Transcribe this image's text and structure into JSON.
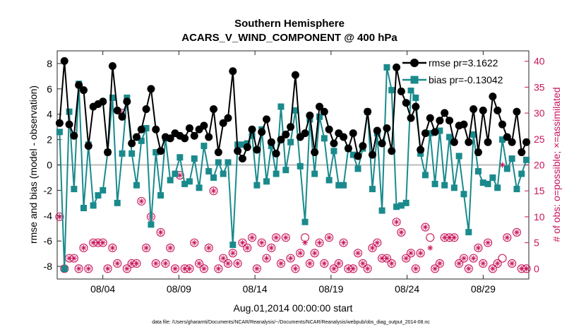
{
  "chart_data": {
    "type": "line",
    "title": "Southern Hemisphere",
    "subtitle": "ACARS_V_WIND_COMPONENT @ 400 hPa",
    "xlabel": "Aug.01,2014 00:00:00 start",
    "ylabel": "rmse and bias (model - observation)",
    "ylabel_right": "# of obs: o=possible; ×=assimilated",
    "footnote": "data file: /Users/gharamti/Documents/NCAR/Reanalysis/~/Documents/NCAR/Reanalysis/webpub/obs_diag_output_2014-08.nc",
    "xlim": [
      1,
      32
    ],
    "ylim": [
      -9,
      9
    ],
    "ylim_right": [
      -2,
      42
    ],
    "x_ticks": [
      4,
      9,
      14,
      19,
      24,
      29
    ],
    "x_tick_labels": [
      "08/04",
      "08/09",
      "08/14",
      "08/19",
      "08/24",
      "08/29"
    ],
    "y_ticks": [
      -8,
      -6,
      -4,
      -2,
      0,
      2,
      4,
      6,
      8
    ],
    "y_ticks_right": [
      0,
      5,
      10,
      15,
      20,
      25,
      30,
      35,
      40
    ],
    "grid": false,
    "legend_position": "top-right",
    "colors": {
      "rmse": "#000000",
      "bias": "#1a8a8c",
      "counts": "#c8155a",
      "zero_line": "#bbbbbb"
    },
    "series": [
      {
        "name": "rmse pr=3.1622",
        "marker": "filled-circle",
        "values": [
          3.3,
          8.2,
          3.2,
          2.3,
          6.3,
          5.9,
          1.5,
          4.6,
          4.8,
          5.0,
          1.0,
          7.8,
          4.3,
          3.8,
          5.0,
          1.7,
          2.2,
          2.8,
          4.4,
          6.0,
          2.8,
          1.1,
          2.2,
          2.1,
          2.5,
          2.3,
          2.1,
          2.9,
          2.3,
          2.8,
          3.1,
          2.2,
          4.4,
          1.0,
          3.3,
          3.7,
          7.4,
          1.1,
          0.5,
          1.4,
          2.8,
          1.2,
          2.6,
          3.6,
          1.8,
          0.9,
          2.0,
          2.4,
          3.0,
          7.1,
          2.2,
          2.5,
          3.9,
          1.0,
          4.6,
          4.2,
          2.8,
          1.7,
          2.5,
          2.2,
          1.3,
          2.5,
          0.7,
          1.5,
          4.2,
          0.8,
          2.7,
          1.7,
          2.9,
          1.1,
          7.7,
          5.8,
          4.9,
          3.7,
          4.6,
          1.2,
          2.5,
          3.7,
          2.6,
          3.5,
          4.1,
          3.5,
          1.8,
          3.1,
          3.2,
          1.8,
          4.4,
          1.0,
          4.3,
          1.8,
          5.4,
          4.3,
          3.2,
          2.2,
          1.8,
          4.2,
          1.0,
          1.8
        ]
      },
      {
        "name": "bias pr=-0.13042",
        "marker": "filled-square",
        "values": [
          2.6,
          -8.2,
          4.2,
          -1.9,
          6.4,
          -3.4,
          1.6,
          -3.2,
          -2.4,
          -2.0,
          1.0,
          5.3,
          -3.0,
          0.9,
          5.3,
          0.9,
          -1.6,
          1.9,
          2.9,
          -4.7,
          1.0,
          -2.4,
          2.1,
          -1.2,
          -0.7,
          0.6,
          -1.5,
          -1.3,
          0.5,
          -1.8,
          1.5,
          -0.5,
          -1.0,
          0.2,
          -0.7,
          0.2,
          -6.3,
          1.6,
          1.6,
          1.7,
          2.3,
          -1.6,
          2.8,
          -1.3,
          1.5,
          -0.7,
          4.6,
          -0.4,
          1.8,
          4.3,
          -0.1,
          -4.5,
          3.6,
          -0.7,
          3.8,
          2.1,
          -1.2,
          1.1,
          -1.6,
          -1.6,
          1.3,
          0.8,
          -0.3,
          1.3,
          4.2,
          -1.9,
          2.5,
          -3.6,
          7.7,
          5.9,
          -3.3,
          -3.2,
          -3.0,
          5.9,
          5.3,
          0.9,
          -0.8,
          2.5,
          -1.5,
          2.7,
          -1.6,
          2.2,
          -1.8,
          0.7,
          -2.3,
          -5.3,
          2.4,
          -0.5,
          -1.4,
          -1.5,
          -1.0,
          -1.8,
          2.0,
          -0.3,
          0.5,
          -1.9,
          -0.7,
          0.4
        ]
      },
      {
        "name": "possible",
        "marker": "open-circle",
        "values": [
          10,
          0,
          2,
          2,
          0,
          4,
          0,
          5,
          5,
          5,
          0,
          4,
          1,
          30,
          0,
          1,
          1,
          13,
          4,
          10,
          1,
          7,
          1,
          4,
          0,
          18,
          0,
          0,
          5,
          1,
          0,
          4,
          15,
          0,
          2,
          1,
          3,
          1,
          5,
          4,
          6,
          0,
          5,
          2,
          4,
          6,
          1,
          6,
          2,
          0,
          3,
          6,
          1,
          3,
          5,
          1,
          6,
          0,
          1,
          5,
          0,
          0,
          3,
          1,
          0,
          4,
          5,
          2,
          2,
          1,
          9,
          7,
          2,
          3,
          0,
          3,
          8,
          6,
          0,
          1,
          6,
          6,
          6,
          1,
          2,
          0,
          2,
          4,
          1,
          5,
          0,
          1,
          2,
          6,
          1,
          7,
          0,
          0
        ]
      },
      {
        "name": "assimilated",
        "marker": "asterisk",
        "values": [
          10,
          0,
          2,
          2,
          0,
          4,
          0,
          5,
          5,
          5,
          0,
          4,
          1,
          30,
          0,
          1,
          1,
          13,
          4,
          10,
          1,
          7,
          1,
          4,
          0,
          18,
          0,
          0,
          5,
          1,
          0,
          4,
          15,
          0,
          2,
          1,
          3,
          1,
          5,
          4,
          6,
          0,
          5,
          2,
          4,
          6,
          1,
          6,
          2,
          0,
          3,
          5,
          1,
          3,
          5,
          1,
          6,
          0,
          1,
          5,
          0,
          0,
          3,
          1,
          0,
          4,
          5,
          2,
          2,
          1,
          9,
          7,
          2,
          3,
          0,
          3,
          8,
          4,
          0,
          1,
          6,
          6,
          6,
          1,
          2,
          0,
          2,
          4,
          1,
          5,
          0,
          1,
          20,
          6,
          1,
          7,
          0,
          0
        ]
      }
    ]
  }
}
